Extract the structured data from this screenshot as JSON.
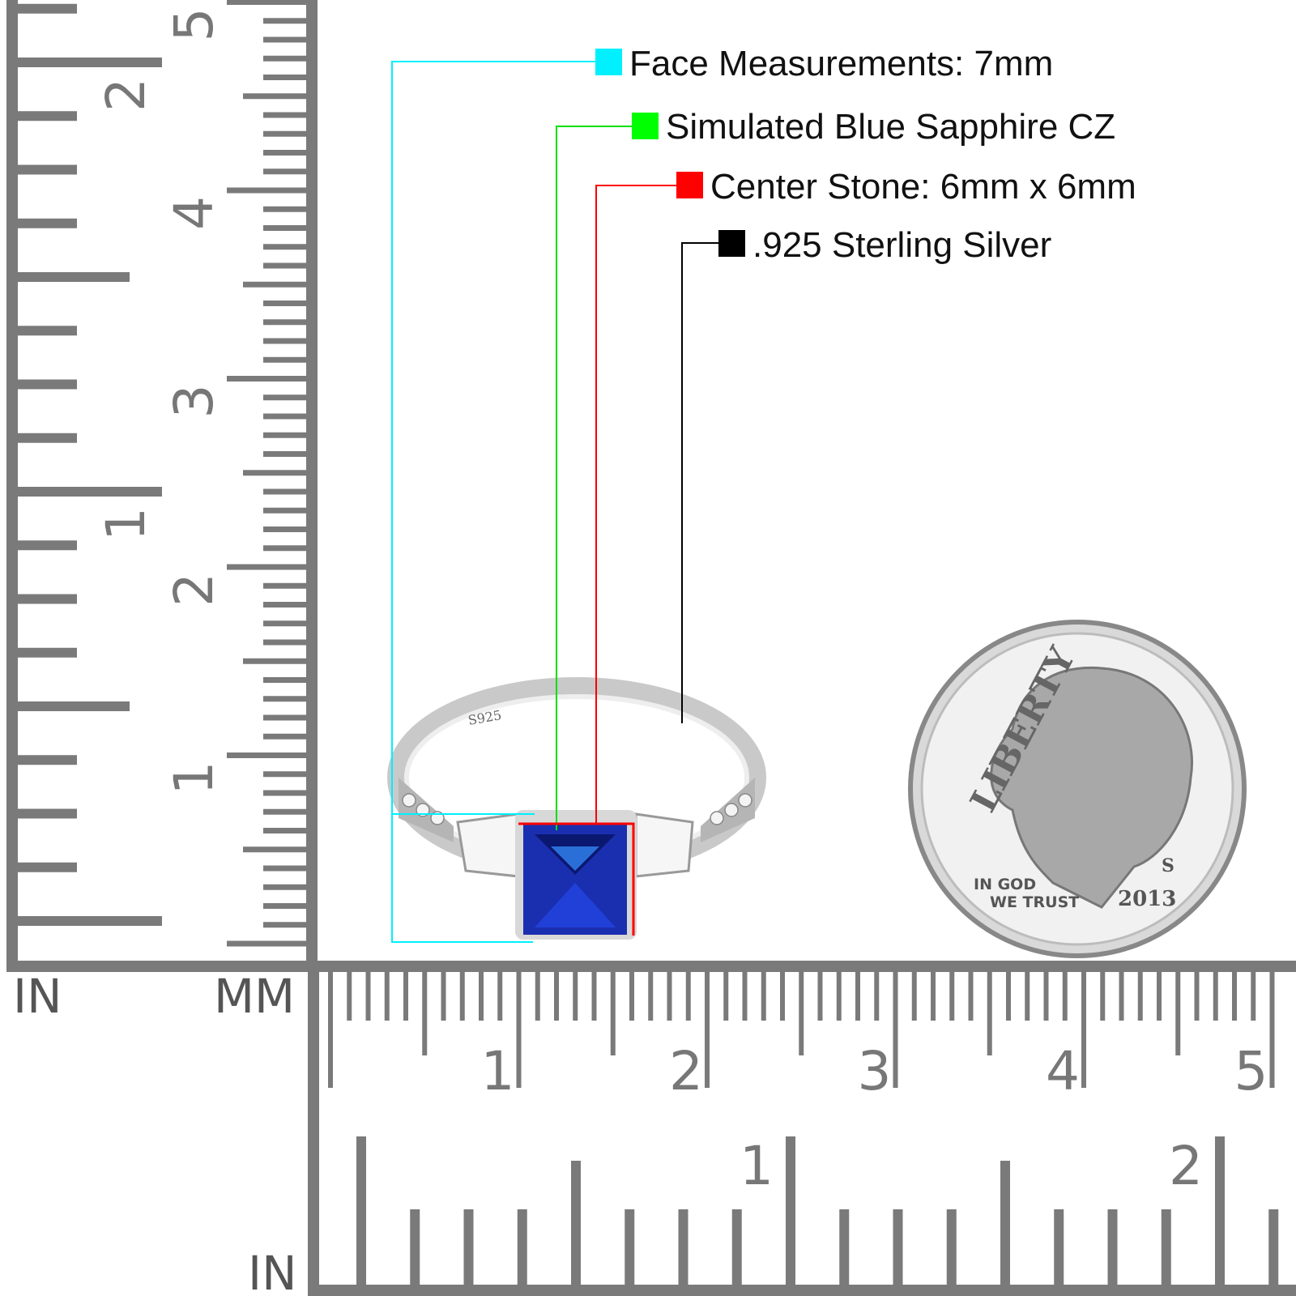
{
  "callouts": [
    {
      "label": "Face Measurements: 7mm",
      "color": "#00f0ff"
    },
    {
      "label": "Simulated Blue Sapphire CZ",
      "color": "#00ff00"
    },
    {
      "label": "Center Stone: 6mm x 6mm",
      "color": "#ff0000"
    },
    {
      "label": ".925 Sterling Silver",
      "color": "#000000"
    }
  ],
  "rulers": {
    "left": {
      "unit_in": "IN",
      "unit_mm": "MM",
      "mm_labels": [
        "1",
        "2",
        "3",
        "4",
        "5"
      ],
      "in_labels": [
        "1",
        "2"
      ]
    },
    "bottom": {
      "unit_in": "IN",
      "mm_labels": [
        "1",
        "2",
        "3",
        "4",
        "5"
      ],
      "in_labels": [
        "1",
        "2"
      ]
    },
    "color": "#7a7a7a"
  },
  "ring": {
    "stamp": "S925",
    "center_stone_color": "#1a2fb0",
    "metal": "silver"
  },
  "coin": {
    "top_text": "LIBERTY",
    "motto_1": "IN GOD",
    "motto_2": "WE TRUST",
    "year": "2013",
    "mint": "S"
  }
}
